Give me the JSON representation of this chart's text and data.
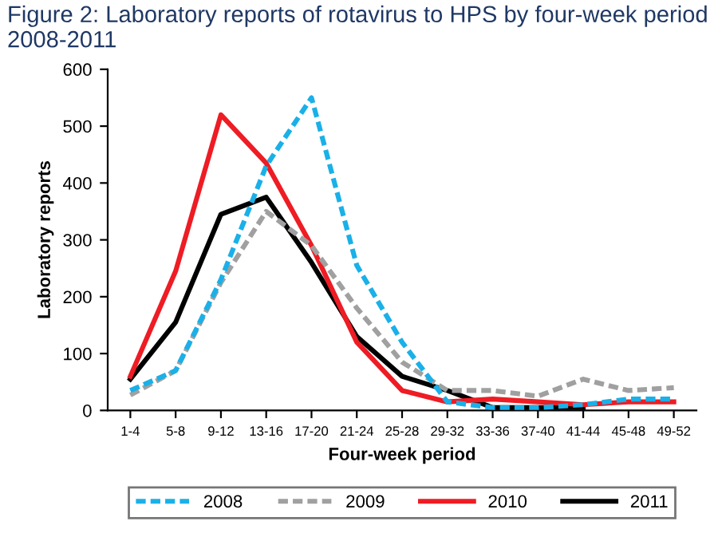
{
  "chart_data": {
    "type": "line",
    "title": "Figure 2: Laboratory reports of rotavirus to HPS by four-week period 2008-2011",
    "xlabel": "Four-week period",
    "ylabel": "Laboratory reports",
    "categories": [
      "1-4",
      "5-8",
      "9-12",
      "13-16",
      "17-20",
      "21-24",
      "25-28",
      "29-32",
      "33-36",
      "37-40",
      "41-44",
      "45-48",
      "49-52"
    ],
    "ylim": [
      0,
      600
    ],
    "yticks": [
      0,
      100,
      200,
      300,
      400,
      500,
      600
    ],
    "grid": false,
    "legend": "bottom",
    "marker": "none",
    "series": [
      {
        "name": "2008",
        "color": "#1ab0e8",
        "line_style": "dashed",
        "values": [
          35,
          70,
          230,
          430,
          550,
          255,
          120,
          15,
          5,
          5,
          10,
          20,
          20
        ]
      },
      {
        "name": "2009",
        "color": "#a0a0a0",
        "line_style": "dashed",
        "values": [
          27,
          70,
          225,
          350,
          290,
          180,
          85,
          35,
          35,
          25,
          55,
          35,
          40
        ]
      },
      {
        "name": "2010",
        "color": "#ee1c24",
        "line_style": "solid",
        "values": [
          60,
          245,
          520,
          435,
          290,
          120,
          35,
          15,
          20,
          15,
          10,
          15,
          15
        ]
      },
      {
        "name": "2011",
        "color": "#000000",
        "line_style": "solid",
        "values": [
          55,
          155,
          345,
          375,
          260,
          130,
          60,
          35,
          5,
          5,
          5,
          null,
          null
        ]
      }
    ]
  }
}
